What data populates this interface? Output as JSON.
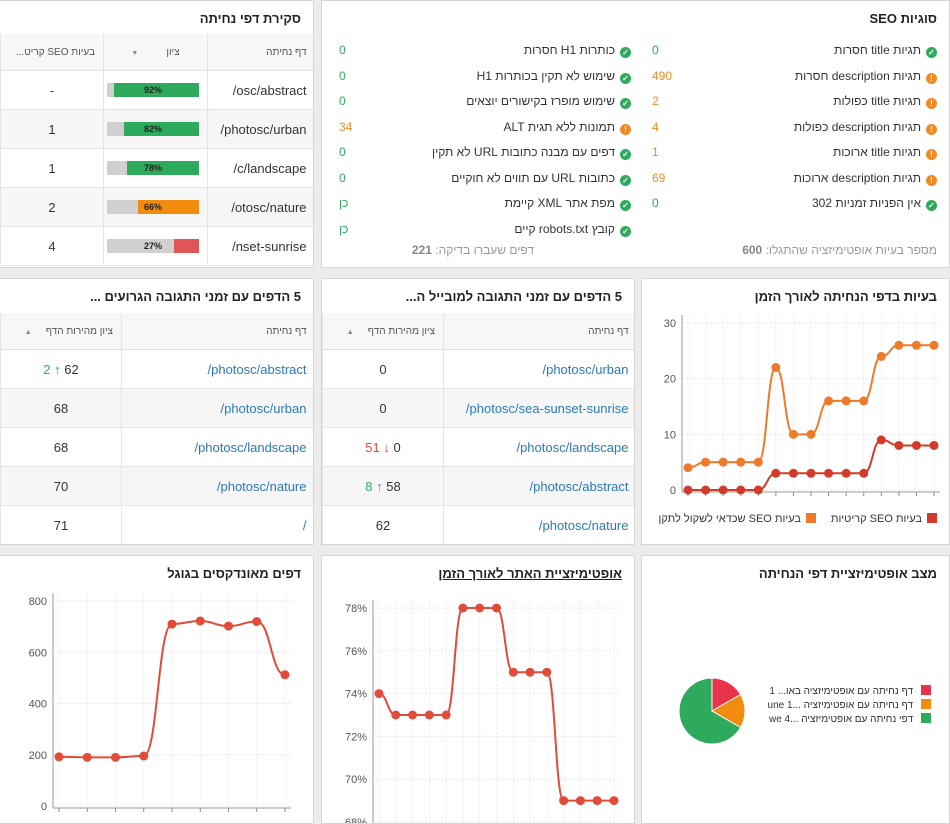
{
  "seo_issues": {
    "title": "סוגיות SEO",
    "right_column": [
      {
        "label": "תגיות title חסרות",
        "value": "0",
        "status": "ok"
      },
      {
        "label": "תגיות description חסרות",
        "value": "490",
        "status": "warn"
      },
      {
        "label": "תגיות title כפולות",
        "value": "2",
        "status": "warn"
      },
      {
        "label": "תגיות description כפולות",
        "value": "4",
        "status": "warn"
      },
      {
        "label": "תגיות title ארוכות",
        "value": "1",
        "status": "warn"
      },
      {
        "label": "תגיות description ארוכות",
        "value": "69",
        "status": "warn"
      },
      {
        "label": "אין הפניות זמניות 302",
        "value": "0",
        "status": "ok"
      }
    ],
    "left_column": [
      {
        "label": "כותרות H1 חסרות",
        "value": "0",
        "status": "ok"
      },
      {
        "label": "שימוש לא תקין בכותרות H1",
        "value": "0",
        "status": "ok"
      },
      {
        "label": "שימוש מופרז בקישורים יוצאים",
        "value": "0",
        "status": "ok"
      },
      {
        "label": "תמונות ללא תגית ALT",
        "value": "34",
        "status": "warn"
      },
      {
        "label": "דפים עם מבנה כתובות URL לא תקין",
        "value": "0",
        "status": "ok"
      },
      {
        "label": "כתובות URL עם תווים לא חוקיים",
        "value": "0",
        "status": "ok"
      },
      {
        "label": "מפת אתר XML קיימת",
        "value": "כן",
        "status": "ok"
      },
      {
        "label": "קובץ robots.txt קיים",
        "value": "כן",
        "status": "ok"
      }
    ],
    "footer_issues_label": "מספר בעיות אופטימיזציה שהתגלו:",
    "footer_issues_value": "600",
    "footer_pages_label": "דפים שעברו בדיקה:",
    "footer_pages_value": "221"
  },
  "landing_overview": {
    "title": "סקירת דפי נחיתה",
    "headers": {
      "page": "דף נחיתה",
      "score": "ציון",
      "issues": "בעיות SEO קריט..."
    },
    "rows": [
      {
        "page": "/osc/abstract",
        "score": 92,
        "score_label": "92%",
        "color": "#2eaa5c",
        "issues": "-"
      },
      {
        "page": "/photosc/urban",
        "score": 82,
        "score_label": "82%",
        "color": "#2eaa5c",
        "issues": "1"
      },
      {
        "page": "/c/landscape",
        "score": 78,
        "score_label": "78%",
        "color": "#2eaa5c",
        "issues": "1"
      },
      {
        "page": "/otosc/nature",
        "score": 66,
        "score_label": "66%",
        "color": "#f28c0f",
        "issues": "2"
      },
      {
        "page": "/nset-sunrise",
        "score": 27,
        "score_label": "27%",
        "color": "#e05555",
        "issues": "4"
      }
    ]
  },
  "issues_chart": {
    "title": "בעיות בדפי הנחיתה לאורך הזמן",
    "chart_data": {
      "type": "line",
      "ylim": [
        0,
        30
      ],
      "yticks": [
        "0",
        "10",
        "20",
        "30"
      ],
      "series": [
        {
          "name": "בעיות SEO שכדאי לשקול לתקן",
          "color": "#ef7a2a",
          "values": [
            4,
            5,
            5,
            5,
            5,
            22,
            10,
            10,
            16,
            16,
            16,
            24,
            26,
            26,
            26
          ]
        },
        {
          "name": "בעיות SEO קריטיות",
          "color": "#d23b2a",
          "values": [
            0,
            0,
            0,
            0,
            0,
            3,
            3,
            3,
            3,
            3,
            3,
            9,
            8,
            8,
            8
          ]
        }
      ]
    }
  },
  "mobile_pages": {
    "title": "5 הדפים עם זמני התגובה למובייל ה...",
    "headers": {
      "page": "דף נחיתה",
      "score": "ציון מהירות הדף"
    },
    "rows": [
      {
        "page": "/photosc/urban",
        "score": "0",
        "delta": "",
        "dir": ""
      },
      {
        "page": "/photosc/sea-sunset-sunrise",
        "score": "0",
        "delta": "",
        "dir": ""
      },
      {
        "page": "/photosc/landscape",
        "score": "0",
        "delta": "51",
        "dir": "down"
      },
      {
        "page": "/photosc/abstract",
        "score": "58",
        "delta": "8",
        "dir": "up"
      },
      {
        "page": "/photosc/nature",
        "score": "62",
        "delta": "",
        "dir": ""
      }
    ]
  },
  "worst_pages": {
    "title": "5 הדפים עם זמני התגובה הגרועים ...",
    "headers": {
      "page": "דף נחיתה",
      "score": "ציון מהירות הדף"
    },
    "rows": [
      {
        "page": "/photosc/abstract",
        "score": "62",
        "delta": "2",
        "dir": "up"
      },
      {
        "page": "/photosc/urban",
        "score": "68",
        "delta": "",
        "dir": ""
      },
      {
        "page": "/photosc/landscape",
        "score": "68",
        "delta": "",
        "dir": ""
      },
      {
        "page": "/photosc/nature",
        "score": "70",
        "delta": "",
        "dir": ""
      },
      {
        "page": "/",
        "score": "71",
        "delta": "",
        "dir": ""
      }
    ]
  },
  "optimization_status": {
    "title": "מצב אופטימיזציית דפי הנחיתה",
    "chart_data": {
      "type": "pie",
      "slices": [
        {
          "label": "דף נחיתה עם אופטימיזציה באו... 1",
          "value": 1,
          "color": "#e8334a"
        },
        {
          "label": "דף נחיתה עם אופטימיזציה ...une 1",
          "value": 1,
          "color": "#f28c0f"
        },
        {
          "label": "דפי נחיתה עם אופטימיזציה ...we 4",
          "value": 4,
          "color": "#2eaa5c"
        }
      ]
    }
  },
  "optimization_chart": {
    "title": "אופטימיזציית האתר לאורך הזמן",
    "chart_data": {
      "type": "line",
      "ylim": [
        68,
        78
      ],
      "yticks": [
        "68%",
        "70%",
        "72%",
        "74%",
        "76%",
        "78%"
      ],
      "color": "#e04b3a",
      "values": [
        74,
        73,
        73,
        73,
        73,
        78,
        78,
        78,
        75,
        75,
        75,
        69,
        69,
        69,
        69
      ]
    }
  },
  "indexed_chart": {
    "title": "דפים מאונדקסים בגוגל",
    "chart_data": {
      "type": "line",
      "ylim": [
        0,
        800
      ],
      "yticks": [
        "0",
        "200",
        "400",
        "600",
        "800"
      ],
      "color": "#e04b3a",
      "values": [
        192,
        190,
        190,
        195,
        710,
        722,
        702,
        720,
        512
      ]
    }
  }
}
